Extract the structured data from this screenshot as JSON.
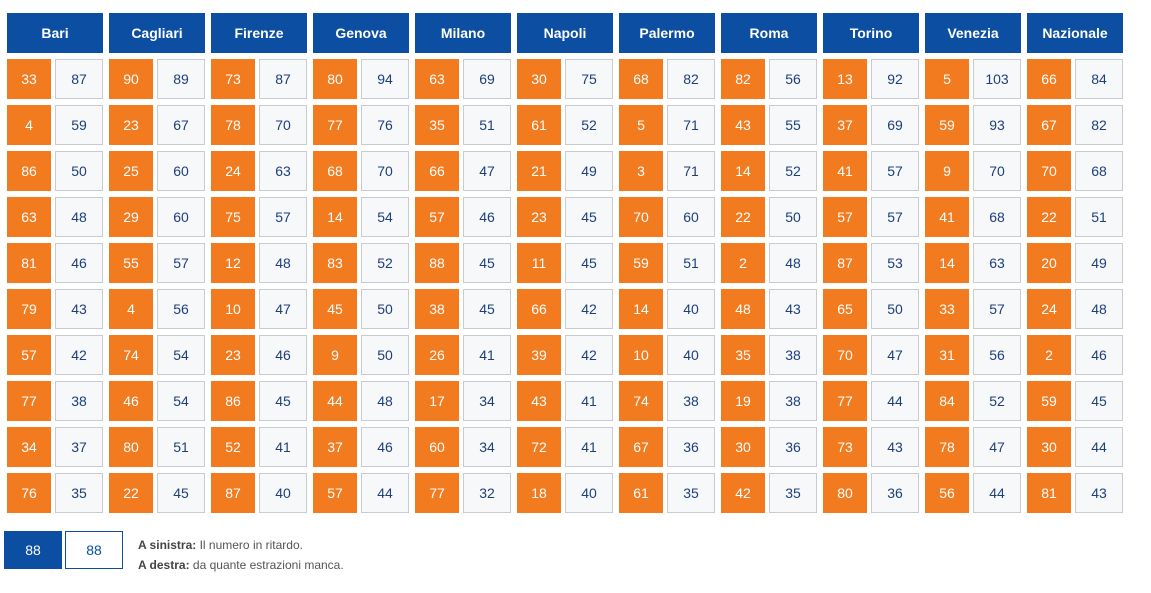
{
  "cities": [
    {
      "name": "Bari",
      "rows": [
        [
          33,
          87
        ],
        [
          4,
          59
        ],
        [
          86,
          50
        ],
        [
          63,
          48
        ],
        [
          81,
          46
        ],
        [
          79,
          43
        ],
        [
          57,
          42
        ],
        [
          77,
          38
        ],
        [
          34,
          37
        ],
        [
          76,
          35
        ]
      ]
    },
    {
      "name": "Cagliari",
      "rows": [
        [
          90,
          89
        ],
        [
          23,
          67
        ],
        [
          25,
          60
        ],
        [
          29,
          60
        ],
        [
          55,
          57
        ],
        [
          4,
          56
        ],
        [
          74,
          54
        ],
        [
          46,
          54
        ],
        [
          80,
          51
        ],
        [
          22,
          45
        ]
      ]
    },
    {
      "name": "Firenze",
      "rows": [
        [
          73,
          87
        ],
        [
          78,
          70
        ],
        [
          24,
          63
        ],
        [
          75,
          57
        ],
        [
          12,
          48
        ],
        [
          10,
          47
        ],
        [
          23,
          46
        ],
        [
          86,
          45
        ],
        [
          52,
          41
        ],
        [
          87,
          40
        ]
      ]
    },
    {
      "name": "Genova",
      "rows": [
        [
          80,
          94
        ],
        [
          77,
          76
        ],
        [
          68,
          70
        ],
        [
          14,
          54
        ],
        [
          83,
          52
        ],
        [
          45,
          50
        ],
        [
          9,
          50
        ],
        [
          44,
          48
        ],
        [
          37,
          46
        ],
        [
          57,
          44
        ]
      ]
    },
    {
      "name": "Milano",
      "rows": [
        [
          63,
          69
        ],
        [
          35,
          51
        ],
        [
          66,
          47
        ],
        [
          57,
          46
        ],
        [
          88,
          45
        ],
        [
          38,
          45
        ],
        [
          26,
          41
        ],
        [
          17,
          34
        ],
        [
          60,
          34
        ],
        [
          77,
          32
        ]
      ]
    },
    {
      "name": "Napoli",
      "rows": [
        [
          30,
          75
        ],
        [
          61,
          52
        ],
        [
          21,
          49
        ],
        [
          23,
          45
        ],
        [
          11,
          45
        ],
        [
          66,
          42
        ],
        [
          39,
          42
        ],
        [
          43,
          41
        ],
        [
          72,
          41
        ],
        [
          18,
          40
        ]
      ]
    },
    {
      "name": "Palermo",
      "rows": [
        [
          68,
          82
        ],
        [
          5,
          71
        ],
        [
          3,
          71
        ],
        [
          70,
          60
        ],
        [
          59,
          51
        ],
        [
          14,
          40
        ],
        [
          10,
          40
        ],
        [
          74,
          38
        ],
        [
          67,
          36
        ],
        [
          61,
          35
        ]
      ]
    },
    {
      "name": "Roma",
      "rows": [
        [
          82,
          56
        ],
        [
          43,
          55
        ],
        [
          14,
          52
        ],
        [
          22,
          50
        ],
        [
          2,
          48
        ],
        [
          48,
          43
        ],
        [
          35,
          38
        ],
        [
          19,
          38
        ],
        [
          30,
          36
        ],
        [
          42,
          35
        ]
      ]
    },
    {
      "name": "Torino",
      "rows": [
        [
          13,
          92
        ],
        [
          37,
          69
        ],
        [
          41,
          57
        ],
        [
          57,
          57
        ],
        [
          87,
          53
        ],
        [
          65,
          50
        ],
        [
          70,
          47
        ],
        [
          77,
          44
        ],
        [
          73,
          43
        ],
        [
          80,
          36
        ]
      ]
    },
    {
      "name": "Venezia",
      "rows": [
        [
          5,
          103
        ],
        [
          59,
          93
        ],
        [
          9,
          70
        ],
        [
          41,
          68
        ],
        [
          14,
          63
        ],
        [
          33,
          57
        ],
        [
          31,
          56
        ],
        [
          84,
          52
        ],
        [
          78,
          47
        ],
        [
          56,
          44
        ]
      ]
    },
    {
      "name": "Nazionale",
      "rows": [
        [
          66,
          84
        ],
        [
          67,
          82
        ],
        [
          70,
          68
        ],
        [
          22,
          51
        ],
        [
          20,
          49
        ],
        [
          24,
          48
        ],
        [
          2,
          46
        ],
        [
          59,
          45
        ],
        [
          30,
          44
        ],
        [
          81,
          43
        ]
      ]
    }
  ],
  "legend": {
    "sample_number": "88",
    "sample_delay": "88",
    "left_label": "A sinistra:",
    "left_text": " Il numero in ritardo.",
    "right_label": "A destra:",
    "right_text": " da quante estrazioni manca."
  },
  "colors": {
    "header_bg": "#0b4ea2",
    "number_bg": "#f27a1f",
    "delay_bg": "#f7f8fa"
  }
}
